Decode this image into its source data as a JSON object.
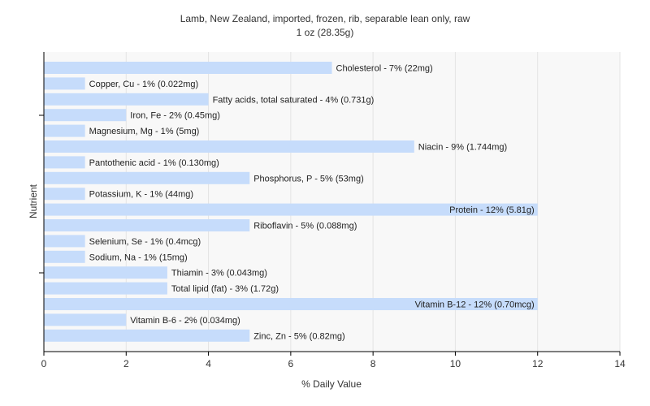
{
  "chart_data": {
    "type": "bar",
    "orientation": "horizontal",
    "title": "Lamb, New Zealand, imported, frozen, rib, separable lean only, raw",
    "subtitle": "1 oz (28.35g)",
    "xlabel": "% Daily Value",
    "ylabel": "Nutrient",
    "xlim": [
      0,
      14
    ],
    "xticks": [
      0,
      2,
      4,
      6,
      8,
      10,
      12,
      14
    ],
    "grid": true,
    "bar_color": "#c6dcfb",
    "categories": [
      "Cholesterol",
      "Copper, Cu",
      "Fatty acids, total saturated",
      "Iron, Fe",
      "Magnesium, Mg",
      "Niacin",
      "Pantothenic acid",
      "Phosphorus, P",
      "Potassium, K",
      "Protein",
      "Riboflavin",
      "Selenium, Se",
      "Sodium, Na",
      "Thiamin",
      "Total lipid (fat)",
      "Vitamin B-12",
      "Vitamin B-6",
      "Zinc, Zn"
    ],
    "values": [
      7,
      1,
      4,
      2,
      1,
      9,
      1,
      5,
      1,
      12,
      5,
      1,
      1,
      3,
      3,
      12,
      2,
      5
    ],
    "labels": [
      "Cholesterol - 7% (22mg)",
      "Copper, Cu - 1% (0.022mg)",
      "Fatty acids, total saturated - 4% (0.731g)",
      "Iron, Fe - 2% (0.45mg)",
      "Magnesium, Mg - 1% (5mg)",
      "Niacin - 9% (1.744mg)",
      "Pantothenic acid - 1% (0.130mg)",
      "Phosphorus, P - 5% (53mg)",
      "Potassium, K - 1% (44mg)",
      "Protein - 12% (5.81g)",
      "Riboflavin - 5% (0.088mg)",
      "Selenium, Se - 1% (0.4mcg)",
      "Sodium, Na - 1% (15mg)",
      "Thiamin - 3% (0.043mg)",
      "Total lipid (fat) - 3% (1.72g)",
      "Vitamin B-12 - 12% (0.70mcg)",
      "Vitamin B-6 - 2% (0.034mg)",
      "Zinc, Zn - 5% (0.82mg)"
    ]
  }
}
